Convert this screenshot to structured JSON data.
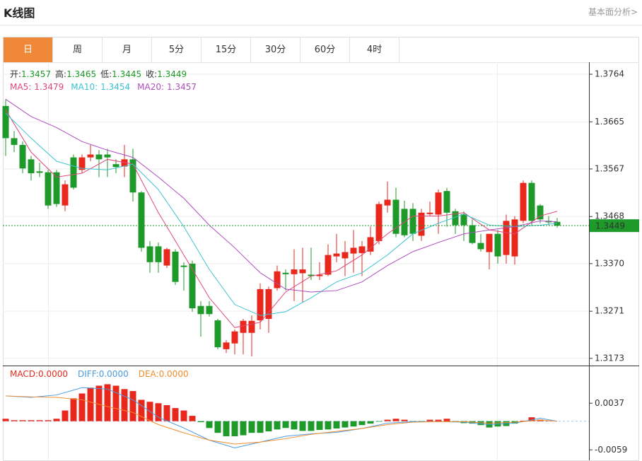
{
  "header": {
    "title": "K线图",
    "link": "基本面分析>"
  },
  "tabs": [
    "日",
    "周",
    "月",
    "5分",
    "15分",
    "30分",
    "60分",
    "4时"
  ],
  "chart_data": [
    {
      "type": "candlestick",
      "ohlc_info": [
        {
          "label": "开:",
          "value": 1.3457
        },
        {
          "label": "高:",
          "value": 1.3465
        },
        {
          "label": "低:",
          "value": 1.3445
        },
        {
          "label": "收:",
          "value": 1.3449
        }
      ],
      "open": [
        1.3698,
        1.3631,
        1.3617,
        1.3587,
        1.3562,
        1.356,
        1.356,
        1.3491,
        1.3591,
        1.3565,
        1.3591,
        1.3597,
        1.3597,
        1.3577,
        1.3572,
        1.3587,
        1.3518,
        1.3406,
        1.3406,
        1.3366,
        1.3395,
        1.3366,
        1.337,
        1.3282,
        1.3282,
        1.3252,
        1.3192,
        1.3204,
        1.3226,
        1.3226,
        1.3252,
        1.3255,
        1.3319,
        1.3351,
        1.3348,
        1.335,
        1.3347,
        1.3344,
        1.3347,
        1.3385,
        1.3381,
        1.3391,
        1.3392,
        1.3395,
        1.3417,
        1.3491,
        1.3503,
        1.3484,
        1.3484,
        1.3428,
        1.3473,
        1.3472,
        1.3521,
        1.3479,
        1.3473,
        1.345,
        1.3413,
        1.3394,
        1.3432,
        1.3388,
        1.3385,
        1.3459,
        1.3538,
        1.3491,
        1.3459,
        1.3457
      ],
      "high": [
        1.3712,
        1.3646,
        1.3624,
        1.3594,
        1.358,
        1.3565,
        1.3565,
        1.3543,
        1.3597,
        1.3597,
        1.3617,
        1.3606,
        1.3609,
        1.3587,
        1.3617,
        1.3609,
        1.3521,
        1.3417,
        1.3414,
        1.3403,
        1.34,
        1.3373,
        1.3376,
        1.3292,
        1.3292,
        1.3255,
        1.3211,
        1.3233,
        1.3255,
        1.3262,
        1.3329,
        1.3322,
        1.3366,
        1.3358,
        1.34,
        1.3403,
        1.3403,
        1.3373,
        1.341,
        1.3432,
        1.3417,
        1.344,
        1.3417,
        1.3447,
        1.3499,
        1.3541,
        1.3528,
        1.3501,
        1.3496,
        1.3484,
        1.3499,
        1.3524,
        1.3528,
        1.3484,
        1.3479,
        1.3462,
        1.3432,
        1.3432,
        1.344,
        1.3472,
        1.3469,
        1.3543,
        1.3543,
        1.3494,
        1.3469,
        1.3465
      ],
      "low": [
        1.3594,
        1.3602,
        1.3558,
        1.3543,
        1.355,
        1.3484,
        1.3488,
        1.3479,
        1.3524,
        1.3558,
        1.3583,
        1.355,
        1.355,
        1.3558,
        1.355,
        1.3499,
        1.3395,
        1.3351,
        1.3351,
        1.3361,
        1.3326,
        1.3314,
        1.327,
        1.3218,
        1.326,
        1.3192,
        1.3184,
        1.3181,
        1.3181,
        1.3177,
        1.3233,
        1.3226,
        1.3314,
        1.3314,
        1.3292,
        1.3289,
        1.3336,
        1.3336,
        1.3344,
        1.3373,
        1.3344,
        1.3351,
        1.3344,
        1.3388,
        1.341,
        1.3476,
        1.3425,
        1.3425,
        1.3417,
        1.3417,
        1.3468,
        1.3432,
        1.3447,
        1.3432,
        1.3417,
        1.341,
        1.3395,
        1.3358,
        1.337,
        1.337,
        1.3368,
        1.3454,
        1.345,
        1.3454,
        1.345,
        1.3445
      ],
      "close": [
        1.3631,
        1.3617,
        1.3568,
        1.3558,
        1.3559,
        1.3491,
        1.3494,
        1.3535,
        1.3528,
        1.3591,
        1.3597,
        1.3587,
        1.3591,
        1.3571,
        1.3587,
        1.3518,
        1.3403,
        1.3373,
        1.3373,
        1.34,
        1.3332,
        1.3363,
        1.3277,
        1.3265,
        1.3265,
        1.3196,
        1.3206,
        1.3229,
        1.3251,
        1.3251,
        1.3317,
        1.3317,
        1.3354,
        1.3348,
        1.3358,
        1.3358,
        1.3344,
        1.3347,
        1.3388,
        1.3391,
        1.3394,
        1.3403,
        1.3406,
        1.3425,
        1.3494,
        1.3503,
        1.3432,
        1.3429,
        1.3432,
        1.3476,
        1.3476,
        1.3518,
        1.3476,
        1.345,
        1.345,
        1.3413,
        1.34,
        1.3432,
        1.3385,
        1.3459,
        1.3462,
        1.3538,
        1.3459,
        1.3462,
        1.3456,
        1.3449
      ],
      "up_color": "#e8281c",
      "down_color": "#1d9a2a",
      "series": [
        {
          "name": "MA5:",
          "legend_value": 1.3479,
          "color": "#e0457b",
          "x": [
            0,
            3,
            6,
            9,
            12,
            15,
            18,
            21,
            24,
            27,
            30,
            33,
            36,
            39,
            42,
            45,
            48,
            51,
            54,
            57,
            60,
            63,
            65
          ],
          "values": [
            1.369,
            1.3602,
            1.355,
            1.3558,
            1.3587,
            1.3577,
            1.3476,
            1.3388,
            1.3299,
            1.3237,
            1.3248,
            1.3311,
            1.3344,
            1.3355,
            1.3388,
            1.3432,
            1.3469,
            1.3469,
            1.3476,
            1.344,
            1.3432,
            1.3469,
            1.3479
          ]
        },
        {
          "name": "MA10:",
          "legend_value": 1.3454,
          "color": "#3cc3d1",
          "x": [
            0,
            3,
            6,
            9,
            12,
            15,
            18,
            21,
            24,
            27,
            30,
            33,
            36,
            39,
            42,
            45,
            48,
            51,
            54,
            57,
            60,
            63,
            65
          ],
          "values": [
            1.3683,
            1.3631,
            1.3583,
            1.3568,
            1.3565,
            1.3577,
            1.3524,
            1.3447,
            1.3358,
            1.3285,
            1.3262,
            1.327,
            1.3299,
            1.3332,
            1.3351,
            1.3388,
            1.3432,
            1.3454,
            1.3473,
            1.345,
            1.3447,
            1.345,
            1.3454
          ]
        },
        {
          "name": "MA20:",
          "legend_value": 1.3457,
          "color": "#b04cc0",
          "x": [
            0,
            3,
            6,
            9,
            12,
            15,
            18,
            21,
            24,
            27,
            30,
            33,
            36,
            39,
            42,
            45,
            48,
            51,
            54,
            57,
            60,
            63,
            65
          ],
          "values": [
            1.3712,
            1.3676,
            1.3653,
            1.3624,
            1.3606,
            1.3591,
            1.355,
            1.3506,
            1.345,
            1.3403,
            1.3351,
            1.3317,
            1.3311,
            1.3314,
            1.3332,
            1.3366,
            1.3395,
            1.3414,
            1.3432,
            1.344,
            1.3447,
            1.3459,
            1.3457
          ]
        }
      ],
      "current_price": 1.3449,
      "current_color": "#1d9a2a",
      "ylim": [
        1.3158,
        1.3789
      ],
      "yticks": [
        1.3764,
        1.3665,
        1.3567,
        1.3468,
        {
          "value": 1.337,
          "label": "1.3370"
        },
        1.3271,
        1.3173
      ],
      "grid": true
    },
    {
      "type": "macd",
      "legend": {
        "name": "MACD:",
        "value": "0.0000",
        "color": "#e8281c"
      },
      "values": [
        0.0005,
        0.0002,
        0.0002,
        0.0002,
        0.0002,
        0.0002,
        0.0005,
        0.0022,
        0.0047,
        0.0057,
        0.0069,
        0.0073,
        0.0076,
        0.0073,
        0.0066,
        0.0062,
        0.0044,
        0.004,
        0.0037,
        0.0033,
        0.0027,
        0.0022,
        0.0011,
        -0.0002,
        -0.0014,
        -0.0024,
        -0.0031,
        -0.0031,
        -0.0029,
        -0.0024,
        -0.0024,
        -0.0021,
        -0.0017,
        -0.0014,
        -0.0017,
        -0.002,
        -0.002,
        -0.0018,
        -0.0017,
        -0.0015,
        -0.0013,
        -0.0011,
        -0.0008,
        -0.0005,
        -0.0001,
        0.0003,
        0.0005,
        0.0003,
        -0.0002,
        -0.0001,
        0.0003,
        0.0003,
        0.0005,
        -0.0001,
        -0.0004,
        -0.0005,
        -0.0008,
        -0.0013,
        -0.0011,
        -0.001,
        -0.0005,
        0.0001,
        0.0008,
        0.0003,
        0.0001,
        0
      ],
      "up_color": "#e8281c",
      "down_color": "#1d9a2a",
      "series": [
        {
          "name": "DIFF:",
          "legend_value": "0.0000",
          "color": "#4a9be0",
          "x": [
            0,
            3,
            6,
            9,
            12,
            15,
            18,
            21,
            24,
            27,
            30,
            33,
            36,
            39,
            42,
            45,
            48,
            51,
            54,
            57,
            60,
            63,
            65
          ],
          "values": [
            0.0052,
            0.0049,
            0.0054,
            0.0069,
            0.0066,
            0.0044,
            0.0008,
            -0.0014,
            -0.0039,
            -0.0055,
            -0.0043,
            -0.0031,
            -0.0026,
            -0.0023,
            -0.0015,
            -0.0004,
            -0.0001,
            -0.0001,
            -0.0002,
            -0.0007,
            -0.0004,
            0.0006,
            0
          ]
        },
        {
          "name": "DEA:",
          "legend_value": "0.0000",
          "color": "#f08c2c",
          "x": [
            0,
            3,
            6,
            9,
            12,
            15,
            18,
            21,
            24,
            27,
            30,
            33,
            36,
            39,
            42,
            45,
            48,
            51,
            54,
            57,
            60,
            63,
            65
          ],
          "values": [
            0.0052,
            0.005,
            0.0049,
            0.0044,
            0.003,
            0.0018,
            -0.0007,
            -0.0024,
            -0.0039,
            -0.0047,
            -0.0043,
            -0.0036,
            -0.0027,
            -0.0021,
            -0.0015,
            -0.0007,
            -0.0002,
            -0.0001,
            -0.0001,
            -0.0004,
            -0.0002,
            0.0002,
            0
          ]
        }
      ],
      "ylim": [
        -0.0079,
        0.0113
      ],
      "yticks": [
        0.0037,
        -0.0059
      ],
      "grid": false
    }
  ]
}
